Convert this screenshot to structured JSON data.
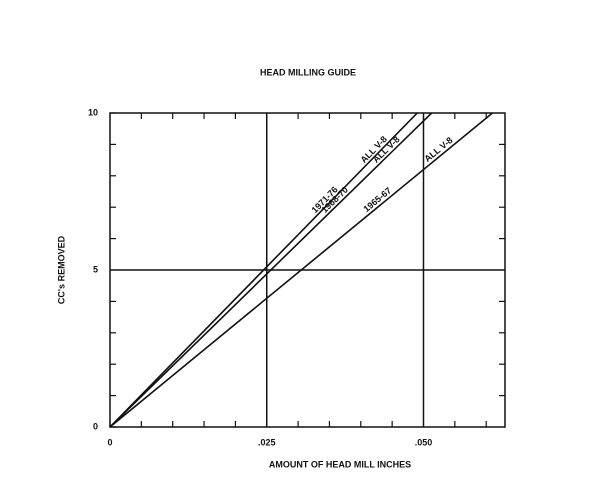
{
  "chart_data": {
    "type": "line",
    "title": "HEAD MILLING GUIDE",
    "xlabel": "AMOUNT OF HEAD MILL  INCHES",
    "ylabel": "CC's REMOVED",
    "xlim": [
      0,
      0.063
    ],
    "ylim": [
      0,
      10
    ],
    "xticks": [
      0,
      {
        "value": 0.025,
        "label": ".025"
      },
      {
        "value": 0.05,
        "label": ".050"
      }
    ],
    "yticks": [
      0,
      5,
      10
    ],
    "xminorticks": [
      0.005,
      0.01,
      0.015,
      0.02,
      0.03,
      0.035,
      0.04,
      0.045,
      0.055,
      0.06
    ],
    "yminorticks": [
      1,
      2,
      3,
      4,
      6,
      7,
      8,
      9
    ],
    "grid": true,
    "series": [
      {
        "name": "1971-76",
        "sublabel": "ALL V-8",
        "color": "#111111",
        "x": [
          0,
          0.049
        ],
        "values": [
          0,
          10
        ]
      },
      {
        "name": "1968-70",
        "sublabel": "ALL V-8",
        "color": "#111111",
        "x": [
          0,
          0.0513
        ],
        "values": [
          0,
          10
        ]
      },
      {
        "name": "1965-67",
        "sublabel": "ALL V-8",
        "color": "#111111",
        "x": [
          0,
          0.061
        ],
        "values": [
          0,
          10
        ]
      }
    ]
  }
}
